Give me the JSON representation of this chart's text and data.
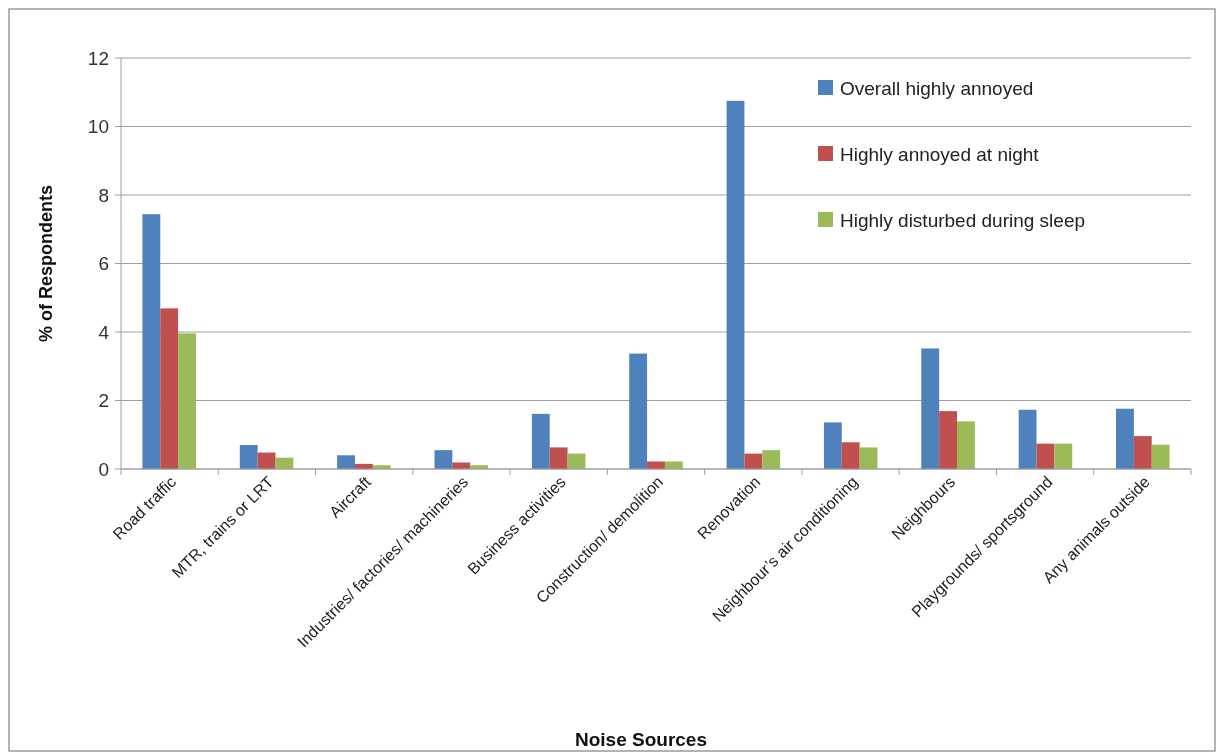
{
  "chart_data": {
    "type": "bar",
    "xlabel": "Noise Sources",
    "ylabel": "% of Respondents",
    "categories": [
      "Road traffic",
      "MTR, trains or LRT",
      "Aircraft",
      "Industries/ factories/ machineries",
      "Business activities",
      "Construction/ demolition",
      "Renovation",
      "Neighbour’s air conditioning",
      "Neighbours",
      "Playgrounds/ sportsground",
      "Any animals outside"
    ],
    "series": [
      {
        "name": "Overall highly annoyed",
        "color": "#4f81bd",
        "values": [
          7.44,
          0.7,
          0.4,
          0.55,
          1.61,
          3.37,
          10.75,
          1.36,
          3.52,
          1.73,
          1.76
        ]
      },
      {
        "name": "Highly annoyed at night",
        "color": "#c0504d",
        "values": [
          4.69,
          0.48,
          0.15,
          0.19,
          0.63,
          0.22,
          0.45,
          0.78,
          1.69,
          0.74,
          0.96
        ]
      },
      {
        "name": "Highly disturbed during sleep",
        "color": "#9bbb59",
        "values": [
          3.96,
          0.33,
          0.11,
          0.11,
          0.45,
          0.22,
          0.55,
          0.63,
          1.39,
          0.74,
          0.71
        ]
      }
    ],
    "ylim": [
      0,
      12
    ],
    "yticks": [
      0,
      2,
      4,
      6,
      8,
      10,
      12
    ],
    "grid": "y",
    "legend": "top right"
  }
}
